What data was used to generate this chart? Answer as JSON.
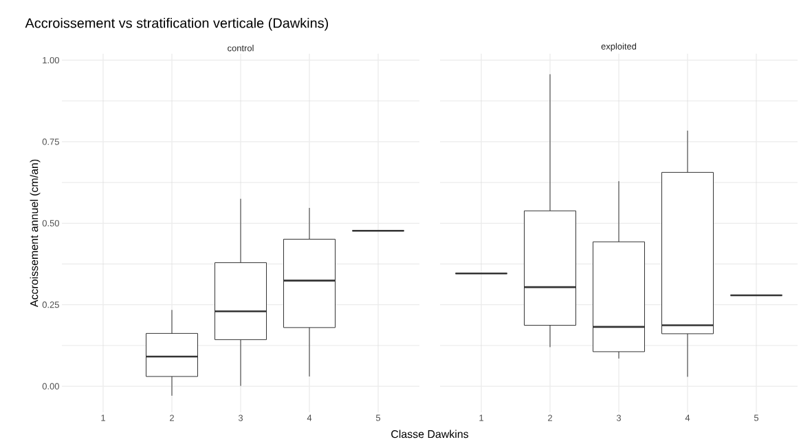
{
  "chart_data": [
    {
      "type": "box",
      "title": "Accroissement vs stratification verticale (Dawkins)",
      "subtitle": "control",
      "xlabel": "Classe Dawkins",
      "ylabel": "Accroissement annuel (cm/an)",
      "categories": [
        "1",
        "2",
        "3",
        "4",
        "5"
      ],
      "series": [
        {
          "color": "#333333",
          "boxes": [
            null,
            {
              "low": -0.029,
              "q1": 0.03,
              "median": 0.091,
              "q3": 0.162,
              "high": 0.234
            },
            {
              "low": 0.001,
              "q1": 0.143,
              "median": 0.23,
              "q3": 0.379,
              "high": 0.575
            },
            {
              "low": 0.03,
              "q1": 0.18,
              "median": 0.324,
              "q3": 0.451,
              "high": 0.547
            },
            {
              "low": 0.477,
              "q1": 0.477,
              "median": 0.477,
              "q3": 0.477,
              "high": 0.477
            }
          ]
        }
      ],
      "ylim": [
        -0.08,
        1.02
      ],
      "yticks": [
        {
          "value": 0,
          "label": "0.00"
        },
        {
          "value": 0.25,
          "label": "0.25"
        },
        {
          "value": 0.5,
          "label": "0.50"
        },
        {
          "value": 0.75,
          "label": "0.75"
        },
        {
          "value": 1,
          "label": "1.00"
        }
      ],
      "grid": true
    },
    {
      "type": "box",
      "subtitle": "exploited",
      "categories": [
        "1",
        "2",
        "3",
        "4",
        "5"
      ],
      "series": [
        {
          "color": "#333333",
          "boxes": [
            {
              "low": 0.346,
              "q1": 0.346,
              "median": 0.346,
              "q3": 0.346,
              "high": 0.346
            },
            {
              "low": 0.12,
              "q1": 0.187,
              "median": 0.304,
              "q3": 0.538,
              "high": 0.957
            },
            {
              "low": 0.085,
              "q1": 0.106,
              "median": 0.182,
              "q3": 0.443,
              "high": 0.629
            },
            {
              "low": 0.029,
              "q1": 0.161,
              "median": 0.187,
              "q3": 0.656,
              "high": 0.784
            },
            {
              "low": 0.279,
              "q1": 0.279,
              "median": 0.279,
              "q3": 0.279,
              "high": 0.279
            }
          ]
        }
      ],
      "ylim": [
        -0.08,
        1.02
      ],
      "yticks": [
        0,
        0.25,
        0.5,
        0.75,
        1
      ],
      "grid": true,
      "tick_labels": "x"
    }
  ]
}
